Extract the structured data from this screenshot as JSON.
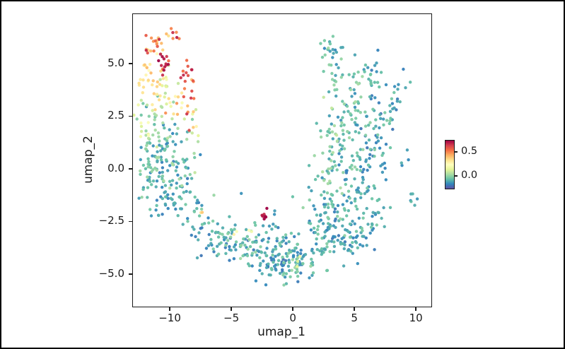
{
  "figure": {
    "background": "#ffffff",
    "border_color": "#000000",
    "text_color": "#1a1a1a"
  },
  "chart_data": {
    "type": "scatter",
    "title": "",
    "xlabel": "umap_1",
    "ylabel": "umap_2",
    "xlim": [
      -13.05,
      11.2
    ],
    "ylim": [
      -6.51,
      7.38
    ],
    "x_ticks": [
      -10,
      -5,
      0,
      5,
      10
    ],
    "x_tick_labels": [
      "−10",
      "−5",
      "0",
      "5",
      "10"
    ],
    "y_ticks": [
      5.0,
      2.5,
      0.0,
      -2.5,
      -5.0
    ],
    "y_tick_labels": [
      "5.0",
      "2.5",
      "0.0",
      "−2.5",
      "−5.0"
    ],
    "grid": false,
    "legend": "none",
    "colorbar": {
      "position": "right",
      "vmin": -0.28,
      "vmax": 0.75,
      "ticks": [
        0.0,
        0.5
      ],
      "tick_labels": [
        "0.0",
        "0.5"
      ],
      "colors": [
        "#5e4fa2",
        "#3288bd",
        "#66c2a5",
        "#abdda4",
        "#e6f598",
        "#ffffbf",
        "#fee08b",
        "#fdae61",
        "#f46d43",
        "#d53e4f",
        "#9e0142"
      ]
    },
    "seed": 42,
    "cluster_format": [
      "center_x",
      "center_y",
      "sigma_x",
      "sigma_y",
      "n_points",
      "value_mean",
      "value_spread"
    ],
    "clusters": [
      [
        -11.3,
        5.8,
        0.55,
        0.45,
        22,
        0.5,
        0.22
      ],
      [
        -9.7,
        6.3,
        0.45,
        0.3,
        7,
        0.55,
        0.15
      ],
      [
        -10.4,
        5.15,
        0.3,
        0.3,
        12,
        0.7,
        0.05
      ],
      [
        -11.9,
        4.4,
        0.4,
        0.6,
        22,
        0.33,
        0.1
      ],
      [
        -10.7,
        4.1,
        0.5,
        0.55,
        18,
        0.22,
        0.18
      ],
      [
        -8.6,
        4.2,
        0.3,
        0.65,
        16,
        0.6,
        0.12
      ],
      [
        -9.6,
        3.1,
        0.65,
        0.45,
        18,
        0.28,
        0.22
      ],
      [
        -8.3,
        2.9,
        0.35,
        0.35,
        8,
        0.52,
        0.15
      ],
      [
        -11.8,
        2.2,
        0.6,
        0.7,
        28,
        0.05,
        0.18
      ],
      [
        -10.8,
        1.3,
        0.75,
        0.85,
        42,
        -0.06,
        0.12
      ],
      [
        -11.9,
        0.0,
        0.5,
        0.8,
        28,
        -0.08,
        0.1
      ],
      [
        -10.6,
        -0.6,
        0.7,
        0.8,
        42,
        -0.13,
        0.07
      ],
      [
        -9.4,
        0.4,
        0.6,
        0.9,
        32,
        -0.08,
        0.12
      ],
      [
        -8.3,
        1.2,
        0.35,
        0.9,
        10,
        0.0,
        0.18
      ],
      [
        -9.9,
        -1.6,
        0.5,
        0.5,
        22,
        -0.14,
        0.06
      ],
      [
        -8.7,
        -1.3,
        0.5,
        0.55,
        18,
        -0.12,
        0.08
      ],
      [
        -7.9,
        -2.4,
        0.5,
        0.55,
        16,
        -0.12,
        0.1
      ],
      [
        -7.5,
        -2.0,
        0.15,
        0.15,
        2,
        0.35,
        0.04
      ],
      [
        -6.8,
        -3.2,
        0.55,
        0.55,
        20,
        -0.13,
        0.08
      ],
      [
        -5.6,
        -3.6,
        0.55,
        0.5,
        22,
        -0.12,
        0.1
      ],
      [
        -5.0,
        -3.0,
        0.2,
        0.2,
        2,
        0.25,
        0.05
      ],
      [
        -4.4,
        -3.4,
        0.6,
        0.55,
        26,
        -0.1,
        0.12
      ],
      [
        -3.8,
        -2.8,
        0.2,
        0.2,
        2,
        0.2,
        0.05
      ],
      [
        -3.3,
        -3.8,
        0.6,
        0.55,
        28,
        -0.12,
        0.08
      ],
      [
        -2.2,
        -4.3,
        0.65,
        0.45,
        28,
        -0.13,
        0.08
      ],
      [
        -1.0,
        -4.6,
        0.75,
        0.4,
        32,
        -0.12,
        0.1
      ],
      [
        0.2,
        -4.4,
        0.75,
        0.45,
        32,
        -0.1,
        0.12
      ],
      [
        0.4,
        -4.3,
        0.25,
        0.2,
        3,
        0.15,
        0.05
      ],
      [
        -0.5,
        -3.5,
        0.75,
        0.45,
        24,
        -0.12,
        0.08
      ],
      [
        -1.8,
        -2.9,
        0.55,
        0.4,
        14,
        -0.12,
        0.08
      ],
      [
        -5.0,
        -2.0,
        0.8,
        0.5,
        6,
        -0.08,
        0.1
      ],
      [
        -2.3,
        -2.15,
        0.18,
        0.15,
        8,
        0.72,
        0.04
      ],
      [
        0.8,
        -1.6,
        0.6,
        0.4,
        3,
        -0.1,
        0.06
      ],
      [
        1.5,
        -3.6,
        0.7,
        0.65,
        32,
        -0.12,
        0.08
      ],
      [
        2.8,
        -3.0,
        0.75,
        0.75,
        38,
        -0.12,
        0.1
      ],
      [
        4.2,
        -3.3,
        0.85,
        0.65,
        38,
        -0.14,
        0.07
      ],
      [
        5.5,
        -2.5,
        0.75,
        0.75,
        32,
        -0.12,
        0.08
      ],
      [
        6.6,
        -1.7,
        0.55,
        0.75,
        22,
        -0.14,
        0.07
      ],
      [
        3.3,
        -1.6,
        0.85,
        0.75,
        32,
        -0.09,
        0.11
      ],
      [
        4.8,
        -0.9,
        0.75,
        0.75,
        28,
        -0.12,
        0.08
      ],
      [
        2.5,
        -0.3,
        0.75,
        0.85,
        28,
        -0.08,
        0.12
      ],
      [
        4.0,
        0.6,
        0.75,
        0.75,
        28,
        -0.09,
        0.11
      ],
      [
        5.8,
        0.3,
        0.65,
        0.75,
        24,
        -0.12,
        0.08
      ],
      [
        6.9,
        1.2,
        0.55,
        0.85,
        22,
        -0.12,
        0.1
      ],
      [
        3.1,
        1.8,
        0.55,
        0.85,
        24,
        -0.05,
        0.13
      ],
      [
        4.6,
        2.4,
        0.65,
        0.75,
        24,
        -0.08,
        0.11
      ],
      [
        6.0,
        2.9,
        0.55,
        0.85,
        22,
        -0.11,
        0.1
      ],
      [
        7.4,
        2.6,
        0.45,
        0.95,
        20,
        -0.12,
        0.08
      ],
      [
        8.6,
        3.4,
        0.45,
        0.75,
        13,
        -0.12,
        0.08
      ],
      [
        5.2,
        4.3,
        0.65,
        0.6,
        18,
        -0.08,
        0.11
      ],
      [
        6.9,
        4.6,
        0.55,
        0.55,
        13,
        -0.12,
        0.08
      ],
      [
        3.0,
        4.4,
        0.45,
        0.65,
        13,
        -0.08,
        0.1
      ],
      [
        2.7,
        5.9,
        0.45,
        0.5,
        14,
        -0.11,
        0.09
      ],
      [
        3.7,
        5.5,
        0.35,
        0.45,
        8,
        -0.09,
        0.09
      ],
      [
        9.6,
        -1.5,
        0.28,
        0.25,
        6,
        -0.12,
        0.05
      ],
      [
        8.9,
        0.1,
        0.25,
        0.45,
        4,
        -0.12,
        0.06
      ]
    ]
  }
}
